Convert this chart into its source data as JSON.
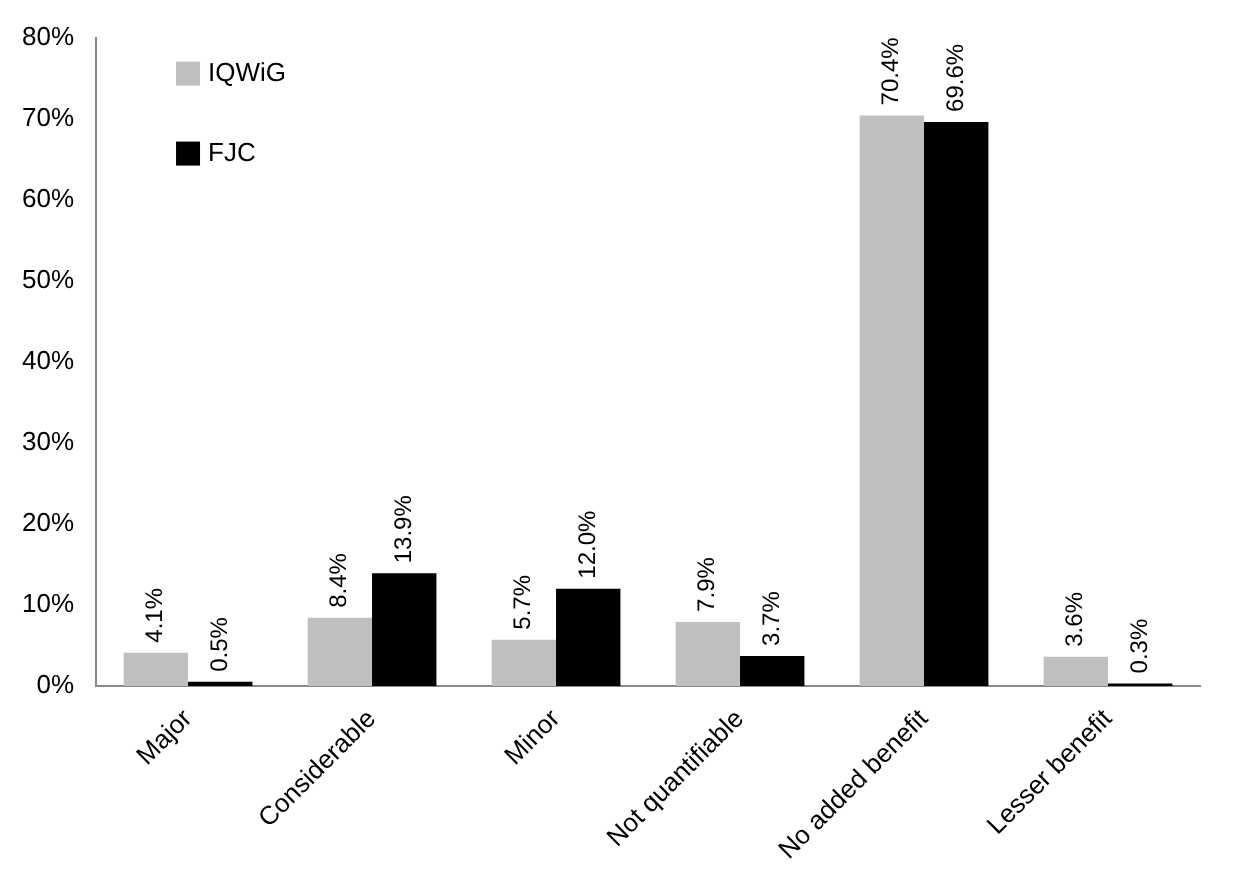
{
  "chart_data": {
    "type": "bar",
    "categories": [
      "Major",
      "Considerable",
      "Minor",
      "Not quantifiable",
      "No added benefit",
      "Lesser benefit"
    ],
    "series": [
      {
        "name": "IQWiG",
        "color": "#bfbfbf",
        "values": [
          4.1,
          8.4,
          5.7,
          7.9,
          70.4,
          3.6
        ],
        "value_labels": [
          "4.1%",
          "8.4%",
          "5.7%",
          "7.9%",
          "70.4%",
          "3.6%"
        ]
      },
      {
        "name": "FJC",
        "color": "#000000",
        "values": [
          0.5,
          13.9,
          12.0,
          3.7,
          69.6,
          0.3
        ],
        "value_labels": [
          "0.5%",
          "13.9%",
          "12.0%",
          "3.7%",
          "69.6%",
          "0.3%"
        ]
      }
    ],
    "ylim": [
      0,
      80
    ],
    "yticks": [
      {
        "value": 0,
        "label": "0%"
      },
      {
        "value": 10,
        "label": "10%"
      },
      {
        "value": 20,
        "label": "20%"
      },
      {
        "value": 30,
        "label": "30%"
      },
      {
        "value": 40,
        "label": "40%"
      },
      {
        "value": 50,
        "label": "50%"
      },
      {
        "value": 60,
        "label": "60%"
      },
      {
        "value": 70,
        "label": "70%"
      },
      {
        "value": 80,
        "label": "80%"
      }
    ],
    "grid": false,
    "legend": "top left"
  }
}
